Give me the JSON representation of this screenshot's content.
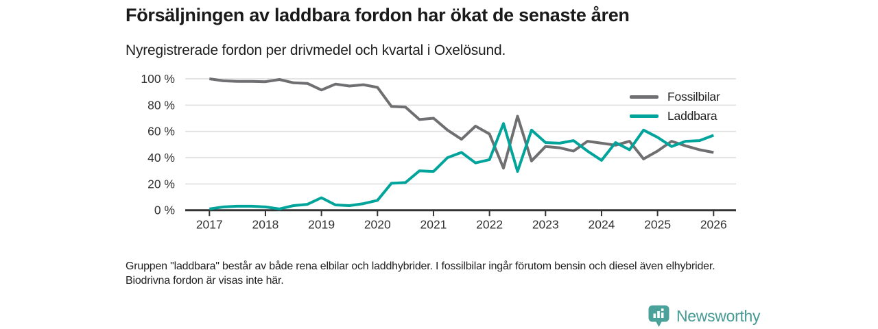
{
  "header": {
    "title": "Försäljningen av laddbara fordon har ökat de senaste åren",
    "subtitle": "Nyregistrerade fordon per drivmedel och kvartal i Oxelösund."
  },
  "chart_data": {
    "type": "line",
    "x_unit": "quarter",
    "categories": [
      "2017 Q1",
      "2017 Q2",
      "2017 Q3",
      "2017 Q4",
      "2018 Q1",
      "2018 Q2",
      "2018 Q3",
      "2018 Q4",
      "2019 Q1",
      "2019 Q2",
      "2019 Q3",
      "2019 Q4",
      "2020 Q1",
      "2020 Q2",
      "2020 Q3",
      "2020 Q4",
      "2021 Q1",
      "2021 Q2",
      "2021 Q3",
      "2021 Q4",
      "2022 Q1",
      "2022 Q2",
      "2022 Q3",
      "2022 Q4",
      "2023 Q1",
      "2023 Q2",
      "2023 Q3",
      "2023 Q4",
      "2024 Q1",
      "2024 Q2",
      "2024 Q3",
      "2024 Q4",
      "2025 Q1",
      "2025 Q2",
      "2025 Q3",
      "2025 Q4",
      "2026 Q1"
    ],
    "series": [
      {
        "name": "Fossilbilar",
        "color": "#6f6f72",
        "values": [
          100,
          98.5,
          98,
          98,
          97.8,
          99.5,
          97,
          96.5,
          91.5,
          96,
          94.5,
          95.5,
          93.5,
          79,
          78.5,
          69,
          70,
          61,
          54,
          64,
          58,
          32,
          71.5,
          37.5,
          48.5,
          47.5,
          45,
          52.5,
          51,
          49.5,
          52.5,
          39,
          45,
          52.5,
          49,
          46,
          44
        ]
      },
      {
        "name": "Laddbara",
        "color": "#00a49b",
        "values": [
          1,
          2.5,
          3,
          3,
          2.5,
          1,
          3.5,
          4.5,
          9.5,
          4,
          3.5,
          5,
          7.5,
          20.5,
          21,
          30,
          29.5,
          40,
          44,
          36,
          38.5,
          66,
          29.5,
          61,
          51.5,
          51,
          53,
          45,
          38,
          51.5,
          46,
          61,
          55.5,
          48.5,
          52.5,
          53,
          57
        ]
      }
    ],
    "title": "Försäljningen av laddbara fordon har ökat de senaste åren",
    "subtitle": "Nyregistrerade fordon per drivmedel och kvartal i Oxelösund.",
    "xlabel": "",
    "ylabel": "",
    "x_tick_labels": [
      "2017",
      "2018",
      "2019",
      "2020",
      "2021",
      "2022",
      "2023",
      "2024",
      "2025",
      "2026"
    ],
    "y_ticks": [
      0,
      20,
      40,
      60,
      80,
      100
    ],
    "y_tick_labels": [
      "0 %",
      "20 %",
      "40 %",
      "60 %",
      "80 %",
      "100 %"
    ],
    "ylim": [
      0,
      100
    ],
    "grid": "horizontal",
    "legend_position": "top-right"
  },
  "footnote": {
    "text": "Gruppen \"laddbara\" består av både rena elbilar och laddhybrider. I fossilbilar ingår förutom bensin och diesel även elhybrider. Biodrivna fordon är visas inte här."
  },
  "logo": {
    "text": "Newsworthy",
    "icon": "bar-chart-pin-icon"
  },
  "colors": {
    "axis": "#333333",
    "gridline": "#dcdcdc",
    "tick_text": "#333333",
    "logo_teal": "#4ba29b"
  }
}
